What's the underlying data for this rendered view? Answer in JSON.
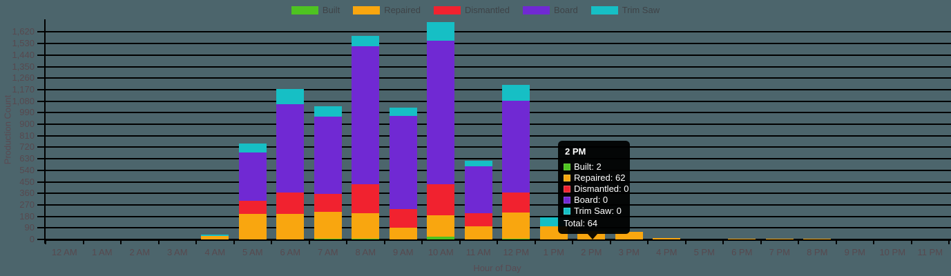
{
  "colors": {
    "background": "#4C656C",
    "gridline": "#000000",
    "axis_line": "#000000",
    "tick_label": "#57494F",
    "axis_title": "#5A4A52",
    "legend_label": "#3E4347",
    "tooltip_bg": "#000000",
    "tooltip_text": "#FFFFFF"
  },
  "chart_data": {
    "type": "bar",
    "stacked": true,
    "xlabel": "Hour of Day",
    "ylabel": "Production Count",
    "grid": true,
    "legend_position": "top",
    "ylim": [
      0,
      1709
    ],
    "ytick_step": 90,
    "ytick_labels": [
      "0",
      "90",
      "180",
      "270",
      "360",
      "450",
      "540",
      "630",
      "720",
      "810",
      "900",
      "990",
      "1,080",
      "1,170",
      "1,260",
      "1,350",
      "1,440",
      "1,530",
      "1,620"
    ],
    "categories": [
      "12 AM",
      "1 AM",
      "2 AM",
      "3 AM",
      "4 AM",
      "5 AM",
      "6 AM",
      "7 AM",
      "8 AM",
      "9 AM",
      "10 AM",
      "11 AM",
      "12 PM",
      "1 PM",
      "2 PM",
      "3 PM",
      "4 PM",
      "5 PM",
      "6 PM",
      "7 PM",
      "8 PM",
      "9 PM",
      "10 PM",
      "11 PM"
    ],
    "series": [
      {
        "name": "Built",
        "color": "#4EC321",
        "swatch_border": "#6AD33E",
        "values": [
          0,
          0,
          0,
          0,
          0,
          0,
          0,
          3,
          3,
          0,
          20,
          0,
          5,
          0,
          2,
          0,
          0,
          0,
          0,
          0,
          0,
          0,
          0,
          0
        ]
      },
      {
        "name": "Repaired",
        "color": "#F9A60F",
        "swatch_border": "#FFC53D",
        "values": [
          0,
          0,
          0,
          0,
          25,
          200,
          200,
          210,
          200,
          90,
          170,
          105,
          205,
          100,
          62,
          60,
          10,
          0,
          7,
          7,
          7,
          0,
          0,
          0
        ]
      },
      {
        "name": "Dismantled",
        "color": "#F1222F",
        "swatch_border": "#FF5560",
        "values": [
          0,
          0,
          0,
          0,
          0,
          100,
          165,
          145,
          230,
          145,
          240,
          100,
          155,
          0,
          0,
          0,
          0,
          0,
          0,
          0,
          0,
          0,
          0,
          0
        ]
      },
      {
        "name": "Board",
        "color": "#7029D3",
        "swatch_border": "#9250E8",
        "values": [
          0,
          0,
          0,
          0,
          0,
          380,
          690,
          600,
          1075,
          730,
          1120,
          365,
          720,
          0,
          0,
          0,
          0,
          0,
          0,
          0,
          0,
          0,
          0,
          0
        ]
      },
      {
        "name": "Trim Saw",
        "color": "#16BFC5",
        "swatch_border": "#3CD9DE",
        "values": [
          0,
          0,
          0,
          0,
          15,
          70,
          120,
          80,
          82,
          65,
          150,
          45,
          120,
          75,
          0,
          0,
          0,
          0,
          0,
          0,
          0,
          0,
          0,
          0
        ]
      }
    ]
  },
  "tooltip": {
    "title": "2 PM",
    "rows": [
      {
        "label": "Built",
        "value": 2,
        "color": "#4EC321",
        "border": "#6AD33E"
      },
      {
        "label": "Repaired",
        "value": 62,
        "color": "#F9A60F",
        "border": "#FFC53D"
      },
      {
        "label": "Dismantled",
        "value": 0,
        "color": "#F1222F",
        "border": "#FF5560"
      },
      {
        "label": "Board",
        "value": 0,
        "color": "#7029D3",
        "border": "#9250E8"
      },
      {
        "label": "Trim Saw",
        "value": 0,
        "color": "#16BFC5",
        "border": "#3CD9DE"
      }
    ],
    "total_text": "Total: 64"
  }
}
